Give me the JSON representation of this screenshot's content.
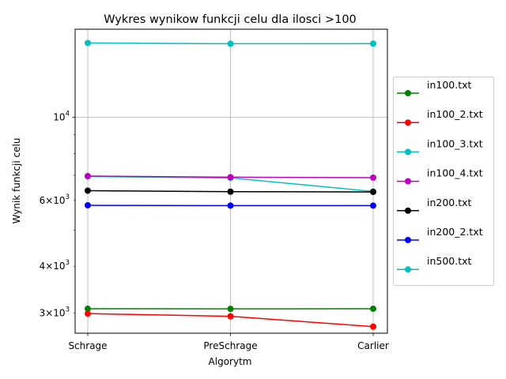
{
  "chart_data": {
    "type": "line",
    "title": "Wykres wynikow funkcji celu dla ilosci >100",
    "xlabel": "Algorytm",
    "ylabel": "Wynik funkcji celu",
    "categories": [
      "Schrage",
      "PreSchrage",
      "Carlier"
    ],
    "yscale": "log",
    "ylim": [
      2650,
      17200
    ],
    "grid": true,
    "legend_position": "right",
    "yticks_major": [
      {
        "value": 10000,
        "base": "10",
        "exp": "4"
      }
    ],
    "yticks_minor": [
      {
        "value": 3000,
        "coef": "3",
        "base": "10",
        "exp": "3"
      },
      {
        "value": 4000,
        "coef": "4",
        "base": "10",
        "exp": "3"
      },
      {
        "value": 6000,
        "coef": "6",
        "base": "10",
        "exp": "3"
      }
    ],
    "series": [
      {
        "name": "in100.txt",
        "color": "#008000",
        "values": [
          3080,
          3078,
          3080
        ]
      },
      {
        "name": "in100_2.txt",
        "color": "#ff0000",
        "values": [
          2990,
          2940,
          2760
        ]
      },
      {
        "name": "in100_3.txt",
        "color": "#00bfbf",
        "values": [
          6950,
          6890,
          6340
        ]
      },
      {
        "name": "in100_4.txt",
        "color": "#bf00bf",
        "values": [
          6970,
          6920,
          6900
        ]
      },
      {
        "name": "in200.txt",
        "color": "#000000",
        "values": [
          6370,
          6330,
          6320
        ]
      },
      {
        "name": "in200_2.txt",
        "color": "#0000ff",
        "values": [
          5820,
          5810,
          5810
        ]
      },
      {
        "name": "in500.txt",
        "color": "#00bfbf",
        "values": [
          15800,
          15730,
          15740
        ]
      }
    ]
  }
}
